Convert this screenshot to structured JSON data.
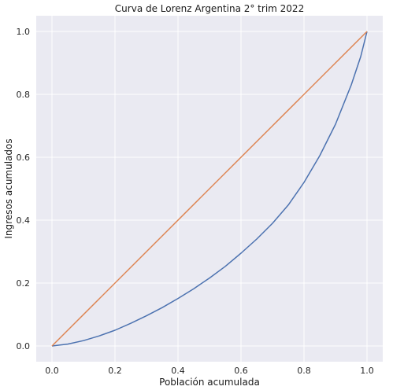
{
  "chart_data": {
    "type": "line",
    "title": "Curva de Lorenz Argentina 2° trim 2022",
    "xlabel": "Población acumulada",
    "ylabel": "Ingresos acumulados",
    "xlim": [
      -0.05,
      1.05
    ],
    "ylim": [
      -0.05,
      1.05
    ],
    "xticks": [
      "0.0",
      "0.2",
      "0.4",
      "0.6",
      "0.8",
      "1.0"
    ],
    "yticks": [
      "0.0",
      "0.2",
      "0.4",
      "0.6",
      "0.8",
      "1.0"
    ],
    "grid": true,
    "background": "#eaeaf2",
    "grid_color": "#ffffff",
    "series": [
      {
        "color": "#4c72b0",
        "x": [
          0.0,
          0.05,
          0.1,
          0.15,
          0.2,
          0.25,
          0.3,
          0.35,
          0.4,
          0.45,
          0.5,
          0.55,
          0.6,
          0.65,
          0.7,
          0.75,
          0.8,
          0.85,
          0.9,
          0.95,
          0.98,
          1.0
        ],
        "y": [
          0.0,
          0.006,
          0.017,
          0.032,
          0.05,
          0.072,
          0.096,
          0.122,
          0.151,
          0.182,
          0.216,
          0.253,
          0.295,
          0.34,
          0.39,
          0.448,
          0.52,
          0.605,
          0.705,
          0.83,
          0.92,
          1.0
        ]
      },
      {
        "color": "#dd8452",
        "x": [
          0.0,
          1.0
        ],
        "y": [
          0.0,
          1.0
        ]
      }
    ]
  }
}
